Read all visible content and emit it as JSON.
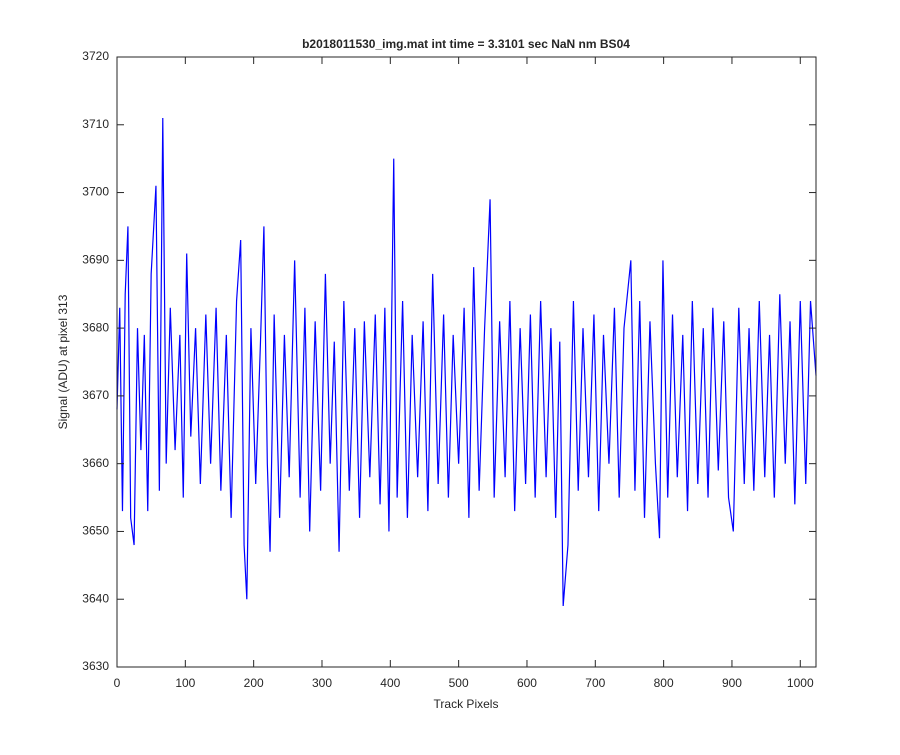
{
  "chart_data": {
    "type": "line",
    "title": "b2018011530_img.mat int time = 3.3101 sec  NaN nm BS04",
    "x_label": "Track Pixels",
    "y_label": "Signal (ADU) at pixel 313",
    "x": [
      0,
      4,
      8,
      12,
      16,
      20,
      25,
      30,
      35,
      40,
      45,
      50,
      57,
      62,
      67,
      72,
      78,
      85,
      92,
      97,
      102,
      108,
      115,
      122,
      130,
      137,
      145,
      152,
      160,
      167,
      175,
      181,
      186,
      190,
      196,
      203,
      210,
      215,
      220,
      224,
      230,
      238,
      245,
      252,
      260,
      268,
      275,
      282,
      290,
      298,
      305,
      312,
      318,
      325,
      332,
      340,
      348,
      355,
      362,
      370,
      378,
      385,
      392,
      398,
      405,
      410,
      418,
      425,
      432,
      440,
      448,
      455,
      462,
      470,
      478,
      485,
      492,
      500,
      508,
      515,
      522,
      530,
      538,
      546,
      552,
      560,
      568,
      575,
      582,
      590,
      598,
      605,
      612,
      620,
      628,
      635,
      642,
      648,
      653,
      660,
      668,
      675,
      682,
      690,
      698,
      705,
      712,
      720,
      728,
      735,
      742,
      752,
      758,
      765,
      772,
      780,
      788,
      794,
      799,
      806,
      813,
      820,
      828,
      835,
      842,
      850,
      858,
      865,
      872,
      880,
      888,
      895,
      902,
      910,
      918,
      925,
      932,
      940,
      948,
      955,
      962,
      970,
      978,
      985,
      992,
      1000,
      1008,
      1015,
      1023
    ],
    "series": [
      {
        "color": "#0000ff",
        "values": [
          3668,
          3683,
          3653,
          3685,
          3695,
          3652,
          3648,
          3680,
          3662,
          3679,
          3653,
          3688,
          3701,
          3656,
          3711,
          3660,
          3683,
          3662,
          3679,
          3655,
          3691,
          3664,
          3680,
          3657,
          3682,
          3660,
          3683,
          3656,
          3679,
          3652,
          3684,
          3693,
          3648,
          3640,
          3680,
          3657,
          3678,
          3695,
          3660,
          3647,
          3682,
          3652,
          3679,
          3658,
          3690,
          3655,
          3683,
          3650,
          3681,
          3656,
          3688,
          3660,
          3678,
          3647,
          3684,
          3656,
          3680,
          3652,
          3681,
          3658,
          3682,
          3654,
          3683,
          3650,
          3705,
          3655,
          3684,
          3652,
          3679,
          3658,
          3681,
          3653,
          3688,
          3657,
          3682,
          3655,
          3679,
          3660,
          3683,
          3652,
          3689,
          3656,
          3680,
          3699,
          3655,
          3681,
          3658,
          3684,
          3653,
          3680,
          3657,
          3682,
          3655,
          3684,
          3658,
          3680,
          3652,
          3678,
          3639,
          3648,
          3684,
          3656,
          3680,
          3658,
          3682,
          3653,
          3679,
          3660,
          3683,
          3655,
          3680,
          3690,
          3656,
          3684,
          3652,
          3681,
          3660,
          3649,
          3690,
          3655,
          3682,
          3658,
          3679,
          3653,
          3684,
          3657,
          3680,
          3655,
          3683,
          3659,
          3681,
          3655,
          3650,
          3683,
          3657,
          3680,
          3656,
          3684,
          3658,
          3679,
          3655,
          3685,
          3660,
          3681,
          3654,
          3684,
          3657,
          3684,
          3673
        ]
      }
    ],
    "xlim": [
      0,
      1023
    ],
    "ylim": [
      3630,
      3720
    ],
    "xticks": [
      0,
      100,
      200,
      300,
      400,
      500,
      600,
      700,
      800,
      900,
      1000
    ],
    "yticks": [
      3630,
      3640,
      3650,
      3660,
      3670,
      3680,
      3690,
      3700,
      3710,
      3720
    ]
  }
}
